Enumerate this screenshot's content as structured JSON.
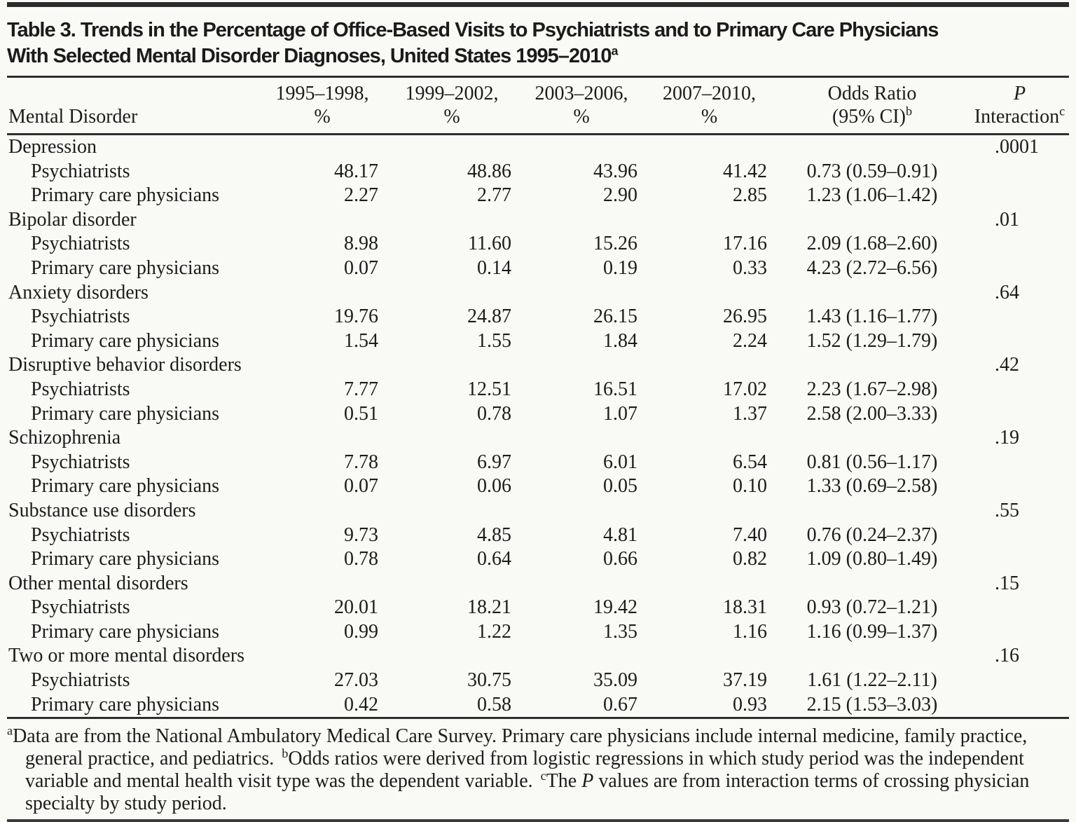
{
  "title": {
    "line1": "Table 3. Trends in the Percentage of Office-Based Visits to Psychiatrists and to Primary Care Physicians",
    "line2": "With Selected Mental Disorder Diagnoses, United States 1995–2010",
    "superscript": "a"
  },
  "table": {
    "col_headers": {
      "disorder": "Mental Disorder",
      "periods": [
        "1995–1998,",
        "1999–2002,",
        "2003–2006,",
        "2007–2010,"
      ],
      "percent_symbol": "%",
      "odds_ratio_line1": "Odds Ratio",
      "odds_ratio_line2": "(95% CI)",
      "odds_ratio_sup": "b",
      "p_line1": "P",
      "p_line2": "Interaction",
      "p_sup": "c"
    },
    "groups": [
      {
        "label": "Depression",
        "p_interaction": ".0001",
        "rows": [
          {
            "label": "Psychiatrists",
            "values": [
              "48.17",
              "48.86",
              "43.96",
              "41.42"
            ],
            "odds_ratio": "0.73 (0.59–0.91)"
          },
          {
            "label": "Primary care physicians",
            "values": [
              "2.27",
              "2.77",
              "2.90",
              "2.85"
            ],
            "odds_ratio": "1.23 (1.06–1.42)"
          }
        ]
      },
      {
        "label": "Bipolar disorder",
        "p_interaction": ".01",
        "rows": [
          {
            "label": "Psychiatrists",
            "values": [
              "8.98",
              "11.60",
              "15.26",
              "17.16"
            ],
            "odds_ratio": "2.09 (1.68–2.60)"
          },
          {
            "label": "Primary care physicians",
            "values": [
              "0.07",
              "0.14",
              "0.19",
              "0.33"
            ],
            "odds_ratio": "4.23 (2.72–6.56)"
          }
        ]
      },
      {
        "label": "Anxiety disorders",
        "p_interaction": ".64",
        "rows": [
          {
            "label": "Psychiatrists",
            "values": [
              "19.76",
              "24.87",
              "26.15",
              "26.95"
            ],
            "odds_ratio": "1.43 (1.16–1.77)"
          },
          {
            "label": "Primary care physicians",
            "values": [
              "1.54",
              "1.55",
              "1.84",
              "2.24"
            ],
            "odds_ratio": "1.52 (1.29–1.79)"
          }
        ]
      },
      {
        "label": "Disruptive behavior disorders",
        "p_interaction": ".42",
        "rows": [
          {
            "label": "Psychiatrists",
            "values": [
              "7.77",
              "12.51",
              "16.51",
              "17.02"
            ],
            "odds_ratio": "2.23 (1.67–2.98)"
          },
          {
            "label": "Primary care physicians",
            "values": [
              "0.51",
              "0.78",
              "1.07",
              "1.37"
            ],
            "odds_ratio": "2.58 (2.00–3.33)"
          }
        ]
      },
      {
        "label": "Schizophrenia",
        "p_interaction": ".19",
        "rows": [
          {
            "label": "Psychiatrists",
            "values": [
              "7.78",
              "6.97",
              "6.01",
              "6.54"
            ],
            "odds_ratio": "0.81 (0.56–1.17)"
          },
          {
            "label": "Primary care physicians",
            "values": [
              "0.07",
              "0.06",
              "0.05",
              "0.10"
            ],
            "odds_ratio": "1.33 (0.69–2.58)"
          }
        ]
      },
      {
        "label": "Substance use disorders",
        "p_interaction": ".55",
        "rows": [
          {
            "label": "Psychiatrists",
            "values": [
              "9.73",
              "4.85",
              "4.81",
              "7.40"
            ],
            "odds_ratio": "0.76 (0.24–2.37)"
          },
          {
            "label": "Primary care physicians",
            "values": [
              "0.78",
              "0.64",
              "0.66",
              "0.82"
            ],
            "odds_ratio": "1.09 (0.80–1.49)"
          }
        ]
      },
      {
        "label": "Other mental disorders",
        "p_interaction": ".15",
        "rows": [
          {
            "label": "Psychiatrists",
            "values": [
              "20.01",
              "18.21",
              "19.42",
              "18.31"
            ],
            "odds_ratio": "0.93 (0.72–1.21)"
          },
          {
            "label": "Primary care physicians",
            "values": [
              "0.99",
              "1.22",
              "1.35",
              "1.16"
            ],
            "odds_ratio": "1.16 (0.99–1.37)"
          }
        ]
      },
      {
        "label": "Two or more mental disorders",
        "p_interaction": ".16",
        "rows": [
          {
            "label": "Psychiatrists",
            "values": [
              "27.03",
              "30.75",
              "35.09",
              "37.19"
            ],
            "odds_ratio": "1.61 (1.22–2.11)"
          },
          {
            "label": "Primary care physicians",
            "values": [
              "0.42",
              "0.58",
              "0.67",
              "0.93"
            ],
            "odds_ratio": "2.15 (1.53–3.03)"
          }
        ]
      }
    ]
  },
  "footnotes": [
    {
      "sup": "a",
      "parts": [
        {
          "text": "Data are from the National Ambulatory Medical Care Survey. Primary care physicians include internal medicine, family practice, general practice, and pediatrics."
        }
      ]
    },
    {
      "sup": "b",
      "parts": [
        {
          "text": "Odds ratios were derived from logistic regressions in which study period was the independent variable and mental health visit type was the dependent variable."
        }
      ]
    },
    {
      "sup": "c",
      "parts": [
        {
          "text": "The "
        },
        {
          "text": "P",
          "italic": true
        },
        {
          "text": " values are from interaction terms of crossing physician specialty by study period."
        }
      ]
    }
  ],
  "colors": {
    "background": "#f9faf6",
    "text": "#1c1c1c",
    "rule": "#2e2e2e"
  }
}
